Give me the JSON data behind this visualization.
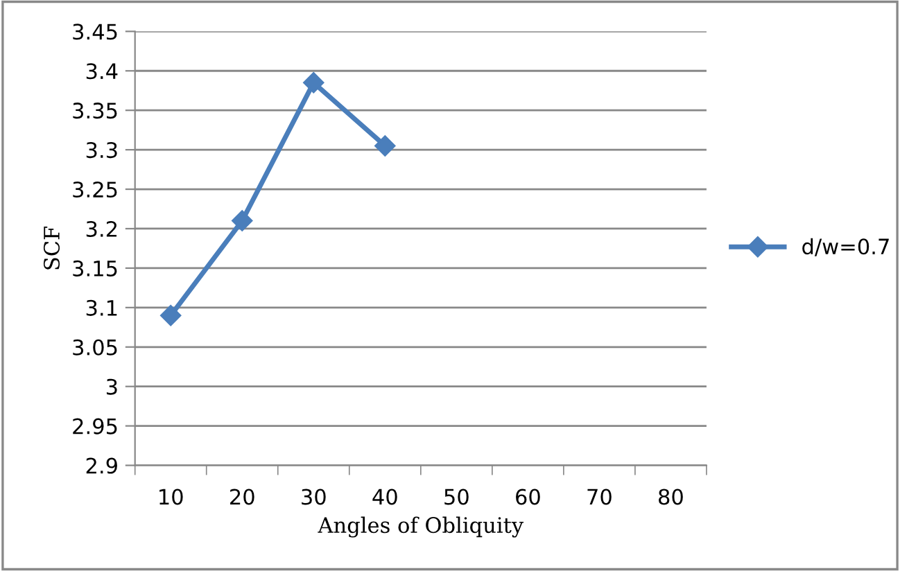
{
  "chart_data": {
    "type": "line",
    "xlabel": "Angles of Obliquity",
    "ylabel": "SCF",
    "categories": [
      "10",
      "20",
      "30",
      "40",
      "50",
      "60",
      "70",
      "80"
    ],
    "series": [
      {
        "name": "d/w=0.7",
        "color": "#4a7ebb",
        "values": [
          3.09,
          3.21,
          3.385,
          3.305,
          null,
          null,
          null,
          null
        ]
      }
    ],
    "ylim": [
      2.9,
      3.45
    ],
    "yticks": [
      {
        "value": 2.9,
        "label": "2.9"
      },
      {
        "value": 2.95,
        "label": "2.95"
      },
      {
        "value": 3,
        "label": "3"
      },
      {
        "value": 3.05,
        "label": "3.05"
      },
      {
        "value": 3.1,
        "label": "3.1"
      },
      {
        "value": 3.15,
        "label": "3.15"
      },
      {
        "value": 3.2,
        "label": "3.2"
      },
      {
        "value": 3.25,
        "label": "3.25"
      },
      {
        "value": 3.3,
        "label": "3.3"
      },
      {
        "value": 3.35,
        "label": "3.35"
      },
      {
        "value": 3.4,
        "label": "3.4"
      },
      {
        "value": 3.45,
        "label": "3.45"
      }
    ],
    "grid": "y",
    "legend": "right",
    "marker": "diamond",
    "line_style": "solid"
  }
}
